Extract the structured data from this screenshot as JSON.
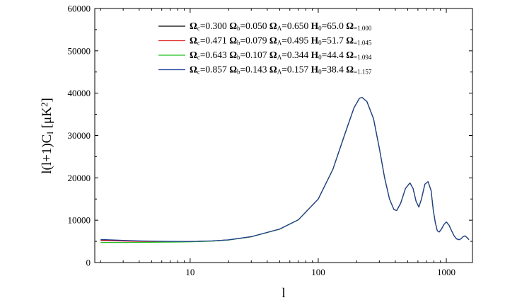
{
  "chart_data": {
    "type": "line",
    "title": "",
    "xlabel": "l",
    "ylabel": "l(l+1)C_l [μK²]",
    "xscale": "log",
    "xlim": [
      1.8,
      1600
    ],
    "ylim": [
      0,
      60000
    ],
    "x_ticks": [
      10,
      100,
      1000
    ],
    "x_tick_labels": [
      "10",
      "100",
      "1000"
    ],
    "y_ticks": [
      0,
      10000,
      20000,
      30000,
      40000,
      50000,
      60000
    ],
    "y_tick_labels": [
      "0",
      "10000",
      "20000",
      "30000",
      "40000",
      "50000",
      "60000"
    ],
    "grid": false,
    "legend_position": "top-right",
    "x": [
      2,
      3,
      4,
      5,
      7,
      10,
      15,
      20,
      30,
      50,
      70,
      100,
      130,
      160,
      190,
      210,
      220,
      240,
      270,
      300,
      330,
      360,
      390,
      410,
      440,
      480,
      520,
      550,
      580,
      610,
      640,
      680,
      720,
      760,
      790,
      820,
      850,
      880,
      920,
      960,
      1000,
      1050,
      1100,
      1150,
      1200,
      1260,
      1300,
      1350,
      1400,
      1450,
      1500
    ],
    "series": [
      {
        "legend": [
          "Ω",
          "c",
          "=0.300 ",
          "Ω",
          "b",
          "=0.050 ",
          "Ω",
          "Λ",
          "=0.650 ",
          "H",
          "0",
          "=65.0 ",
          "Ω",
          "=1.000"
        ],
        "color": "#000000",
        "values": [
          5300,
          5150,
          5050,
          5000,
          4950,
          4950,
          5100,
          5350,
          6100,
          7900,
          10100,
          15000,
          22000,
          30000,
          36500,
          38800,
          39000,
          38000,
          34000,
          27000,
          20000,
          15000,
          12500,
          12300,
          14000,
          17500,
          18800,
          17500,
          14500,
          13100,
          15000,
          18500,
          19100,
          17000,
          12500,
          9500,
          7500,
          7200,
          8000,
          9000,
          9600,
          8800,
          7500,
          6300,
          5600,
          5400,
          5600,
          6100,
          6300,
          5900,
          5400
        ]
      },
      {
        "legend": [
          "Ω",
          "c",
          "=0.471 ",
          "Ω",
          "b",
          "=0.079 ",
          "Ω",
          "Λ",
          "=0.495 ",
          "H",
          "0",
          "=51.7 ",
          "Ω",
          "=1.045"
        ],
        "color": "#e02020",
        "values": [
          5200,
          5080,
          5000,
          4960,
          4930,
          4940,
          5090,
          5340,
          6090,
          7890,
          10090,
          15000,
          22000,
          30000,
          36500,
          38800,
          39000,
          38000,
          34000,
          27000,
          20000,
          15000,
          12500,
          12300,
          14000,
          17500,
          18800,
          17500,
          14500,
          13100,
          15000,
          18500,
          19100,
          17000,
          12500,
          9500,
          7500,
          7200,
          8000,
          9000,
          9600,
          8800,
          7500,
          6300,
          5600,
          5400,
          5600,
          6100,
          6300,
          5900,
          5400
        ]
      },
      {
        "legend": [
          "Ω",
          "c",
          "=0.643 ",
          "Ω",
          "b",
          "=0.107 ",
          "Ω",
          "Λ",
          "=0.344 ",
          "H",
          "0",
          "=44.4 ",
          "Ω",
          "=1.094"
        ],
        "color": "#20c020",
        "values": [
          4750,
          4750,
          4760,
          4780,
          4820,
          4880,
          5050,
          5320,
          6080,
          7880,
          10080,
          15000,
          22000,
          30000,
          36500,
          38800,
          39000,
          38000,
          34000,
          27000,
          20000,
          15000,
          12500,
          12300,
          14000,
          17500,
          18800,
          17500,
          14500,
          13100,
          15000,
          18500,
          19100,
          17000,
          12500,
          9500,
          7500,
          7200,
          8000,
          9000,
          9600,
          8800,
          7500,
          6300,
          5600,
          5400,
          5600,
          6100,
          6300,
          5900,
          5400
        ]
      },
      {
        "legend": [
          "Ω",
          "c",
          "=0.857 ",
          "Ω",
          "b",
          "=0.143 ",
          "Ω",
          "Λ",
          "=0.157 ",
          "H",
          "0",
          "=38.4 ",
          "Ω",
          "=1.157"
        ],
        "color": "#1f3d99",
        "values": [
          5450,
          5250,
          5120,
          5060,
          4990,
          4970,
          5110,
          5360,
          6110,
          7910,
          10110,
          15000,
          22000,
          30000,
          36500,
          38800,
          39000,
          38000,
          34000,
          27000,
          20000,
          15000,
          12500,
          12300,
          14000,
          17500,
          18800,
          17500,
          14500,
          13100,
          15000,
          18500,
          19100,
          17000,
          12500,
          9500,
          7500,
          7200,
          8000,
          9000,
          9600,
          8800,
          7500,
          6300,
          5600,
          5400,
          5600,
          6100,
          6300,
          5900,
          5400
        ]
      }
    ]
  }
}
